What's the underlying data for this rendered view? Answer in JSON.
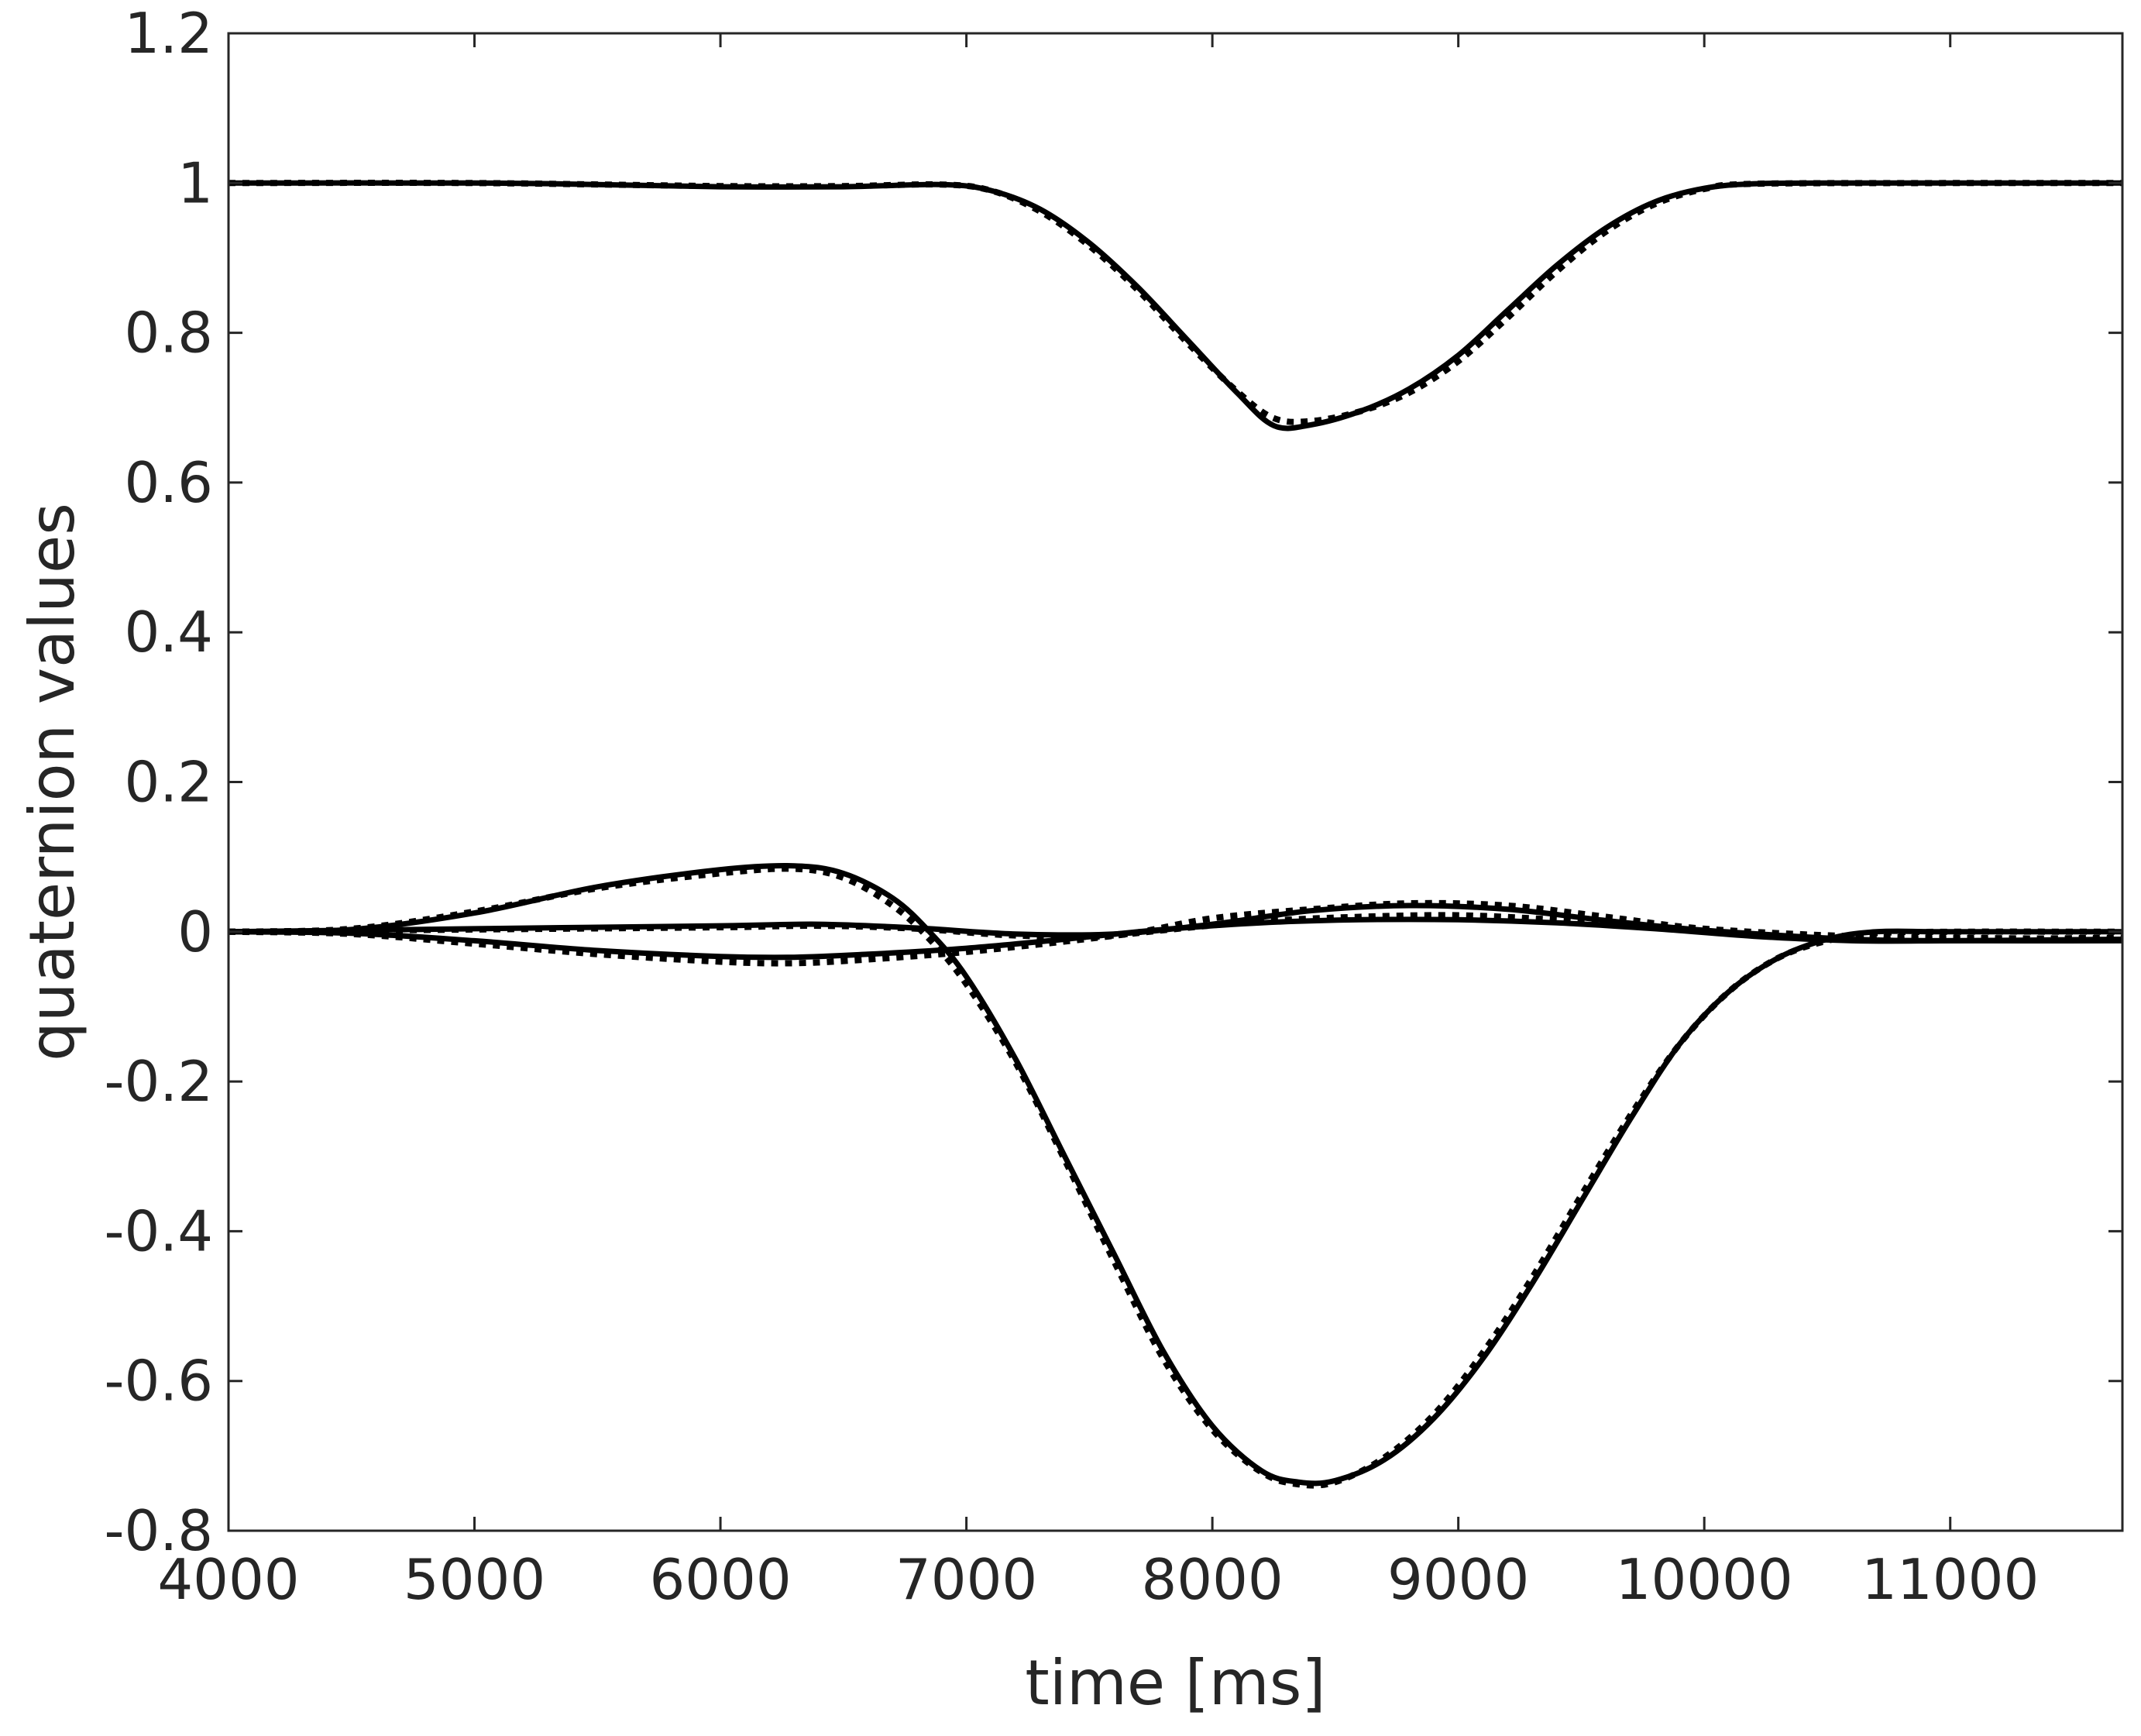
{
  "chart_data": {
    "type": "line",
    "title": "",
    "xlabel": "time [ms]",
    "ylabel": "quaternion values",
    "xlim": [
      4000,
      11700
    ],
    "ylim": [
      -0.8,
      1.2
    ],
    "grid": false,
    "legend": "none",
    "xticks": [
      4000,
      5000,
      6000,
      7000,
      8000,
      9000,
      10000,
      11000
    ],
    "xtick_labels": [
      "4000",
      "5000",
      "6000",
      "7000",
      "8000",
      "9000",
      "10000",
      "11000"
    ],
    "yticks": [
      1.2,
      1,
      0.8,
      0.6,
      0.4,
      0.2,
      0,
      -0.2,
      -0.4,
      -0.6,
      -0.8
    ],
    "ytick_labels": [
      "1.2",
      "1",
      "0.8",
      "0.6",
      "0.4",
      "0.2",
      "0",
      "-0.2",
      "-0.4",
      "-0.6",
      "-0.8"
    ],
    "series": [
      {
        "name": "q0-solid",
        "style": "solid",
        "x": [
          4000,
          5000,
          5500,
          6000,
          6500,
          6900,
          7100,
          7300,
          7500,
          7700,
          7900,
          8100,
          8250,
          8400,
          8600,
          8800,
          9000,
          9200,
          9400,
          9600,
          9800,
          10000,
          10200,
          10500,
          11000,
          11700
        ],
        "y": [
          1.0,
          1.0,
          0.998,
          0.995,
          0.995,
          0.998,
          0.99,
          0.965,
          0.92,
          0.86,
          0.79,
          0.72,
          0.676,
          0.677,
          0.695,
          0.725,
          0.77,
          0.83,
          0.89,
          0.94,
          0.975,
          0.993,
          0.999,
          1.0,
          1.0,
          1.0
        ]
      },
      {
        "name": "q0-dotted",
        "style": "dotted",
        "x": [
          4000,
          5000,
          6000,
          6500,
          6900,
          7100,
          7300,
          7500,
          7700,
          7900,
          8100,
          8250,
          8400,
          8600,
          8800,
          9000,
          9200,
          9400,
          9600,
          9800,
          10000,
          10200,
          11000,
          11700
        ],
        "y": [
          1.0,
          1.0,
          0.996,
          0.996,
          0.998,
          0.99,
          0.962,
          0.916,
          0.856,
          0.786,
          0.722,
          0.686,
          0.682,
          0.695,
          0.72,
          0.762,
          0.82,
          0.882,
          0.935,
          0.972,
          0.992,
          0.999,
          1.0,
          1.0
        ]
      },
      {
        "name": "q-large-solid",
        "style": "solid",
        "x": [
          4000,
          4500,
          5000,
          5500,
          6000,
          6300,
          6500,
          6700,
          6850,
          7000,
          7200,
          7400,
          7600,
          7800,
          8000,
          8200,
          8350,
          8500,
          8700,
          8900,
          9100,
          9300,
          9500,
          9700,
          9900,
          10100,
          10300,
          10500,
          10700,
          11000,
          11700
        ],
        "y": [
          0.0,
          0.003,
          0.025,
          0.06,
          0.083,
          0.088,
          0.078,
          0.045,
          0.0,
          -0.06,
          -0.17,
          -0.3,
          -0.43,
          -0.56,
          -0.66,
          -0.72,
          -0.735,
          -0.733,
          -0.705,
          -0.65,
          -0.57,
          -0.47,
          -0.36,
          -0.25,
          -0.15,
          -0.08,
          -0.035,
          -0.01,
          0.0,
          0.0,
          0.0
        ]
      },
      {
        "name": "q-large-dotted",
        "style": "dotted",
        "x": [
          4000,
          4500,
          5000,
          5500,
          6000,
          6300,
          6500,
          6700,
          6850,
          7000,
          7200,
          7400,
          7600,
          7800,
          8000,
          8200,
          8350,
          8500,
          8700,
          8900,
          9100,
          9300,
          9500,
          9700,
          9900,
          10100,
          10300,
          10500,
          10700,
          11000,
          11700
        ],
        "y": [
          0.0,
          0.004,
          0.027,
          0.058,
          0.078,
          0.084,
          0.072,
          0.035,
          -0.01,
          -0.07,
          -0.175,
          -0.305,
          -0.44,
          -0.57,
          -0.665,
          -0.722,
          -0.738,
          -0.735,
          -0.702,
          -0.645,
          -0.562,
          -0.462,
          -0.352,
          -0.245,
          -0.15,
          -0.08,
          -0.035,
          -0.012,
          -0.002,
          0.0,
          0.0
        ]
      },
      {
        "name": "q-small-a-solid",
        "style": "solid",
        "x": [
          4000,
          5000,
          6000,
          6400,
          6800,
          7200,
          7600,
          8000,
          8400,
          8800,
          9200,
          9600,
          10000,
          10600,
          11000,
          11700
        ],
        "y": [
          0.0,
          0.004,
          0.008,
          0.01,
          0.005,
          -0.003,
          -0.003,
          0.01,
          0.028,
          0.035,
          0.03,
          0.015,
          0.002,
          -0.01,
          -0.012,
          -0.012
        ]
      },
      {
        "name": "q-small-a-dotted",
        "style": "dotted",
        "x": [
          4000,
          5000,
          6000,
          6400,
          6800,
          7200,
          7600,
          8000,
          8400,
          8800,
          9200,
          9600,
          10000,
          10600,
          11000,
          11700
        ],
        "y": [
          0.0,
          0.003,
          0.006,
          0.008,
          0.004,
          -0.005,
          -0.005,
          0.018,
          0.03,
          0.038,
          0.035,
          0.02,
          0.004,
          -0.006,
          -0.008,
          -0.01
        ]
      },
      {
        "name": "q-small-b-solid",
        "style": "solid",
        "x": [
          4000,
          4500,
          5000,
          5500,
          6000,
          6300,
          6600,
          7000,
          7400,
          7800,
          8200,
          8600,
          9000,
          9400,
          9800,
          10200,
          10600,
          11000,
          11700
        ],
        "y": [
          0.0,
          -0.002,
          -0.012,
          -0.025,
          -0.033,
          -0.034,
          -0.03,
          -0.022,
          -0.01,
          0.003,
          0.012,
          0.016,
          0.016,
          0.012,
          0.004,
          -0.006,
          -0.012,
          -0.012,
          -0.01
        ]
      },
      {
        "name": "q-small-b-dotted",
        "style": "dotted",
        "x": [
          4000,
          4500,
          5000,
          5500,
          6000,
          6300,
          6600,
          7000,
          7400,
          7800,
          8200,
          8600,
          9000,
          9400,
          9800,
          10200,
          10600,
          11000,
          11700
        ],
        "y": [
          0.0,
          -0.003,
          -0.016,
          -0.03,
          -0.04,
          -0.042,
          -0.037,
          -0.027,
          -0.013,
          0.002,
          0.014,
          0.02,
          0.022,
          0.016,
          0.006,
          -0.004,
          -0.01,
          -0.01,
          -0.008
        ]
      }
    ]
  }
}
